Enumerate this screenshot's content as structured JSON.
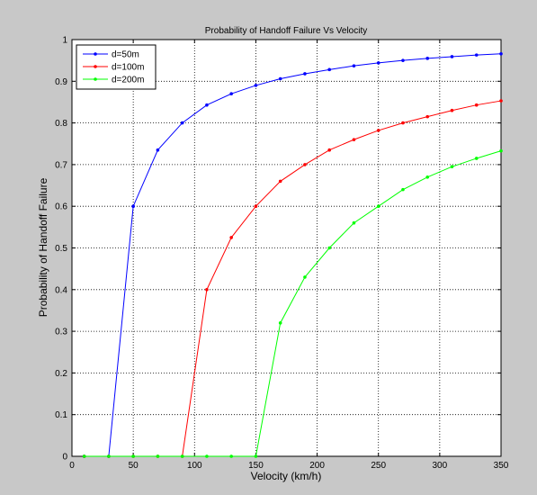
{
  "chart_data": {
    "type": "line",
    "title": "Probability of Handoff Failure Vs Velocity",
    "xlabel": "Velocity (km/h)",
    "ylabel": "Probability of Handoff Failure",
    "xlim": [
      0,
      350
    ],
    "ylim": [
      0,
      1
    ],
    "xticks": [
      0,
      50,
      100,
      150,
      200,
      250,
      300,
      350
    ],
    "yticks": [
      0,
      0.1,
      0.2,
      0.3,
      0.4,
      0.5,
      0.6,
      0.7,
      0.8,
      0.9,
      1
    ],
    "xtick_labels": [
      "0",
      "50",
      "100",
      "150",
      "200",
      "250",
      "300",
      "350"
    ],
    "ytick_labels": [
      "0",
      "0.1",
      "0.2",
      "0.3",
      "0.4",
      "0.5",
      "0.6",
      "0.7",
      "0.8",
      "0.9",
      "1"
    ],
    "grid": true,
    "grid_style": "dotted",
    "legend_position": "top-left",
    "series": [
      {
        "name": "d=50m",
        "color": "#0000ff",
        "x": [
          10,
          30,
          50,
          70,
          90,
          110,
          130,
          150,
          170,
          190,
          210,
          230,
          250,
          270,
          290,
          310,
          330,
          350
        ],
        "y": [
          0,
          0,
          0.6,
          0.735,
          0.8,
          0.843,
          0.87,
          0.89,
          0.906,
          0.918,
          0.928,
          0.937,
          0.944,
          0.95,
          0.955,
          0.959,
          0.963,
          0.966
        ]
      },
      {
        "name": "d=100m",
        "color": "#ff0000",
        "x": [
          10,
          30,
          50,
          70,
          90,
          110,
          130,
          150,
          170,
          190,
          210,
          230,
          250,
          270,
          290,
          310,
          330,
          350
        ],
        "y": [
          0,
          0,
          0,
          0,
          0,
          0.4,
          0.525,
          0.6,
          0.66,
          0.7,
          0.735,
          0.76,
          0.782,
          0.8,
          0.815,
          0.83,
          0.843,
          0.853
        ]
      },
      {
        "name": "d=200m",
        "color": "#00ff00",
        "x": [
          10,
          30,
          50,
          70,
          90,
          110,
          130,
          150,
          170,
          190,
          210,
          230,
          250,
          270,
          290,
          310,
          330,
          350
        ],
        "y": [
          0,
          0,
          0,
          0,
          0,
          0,
          0,
          0,
          0.32,
          0.43,
          0.5,
          0.56,
          0.6,
          0.64,
          0.67,
          0.695,
          0.715,
          0.733
        ]
      }
    ]
  }
}
